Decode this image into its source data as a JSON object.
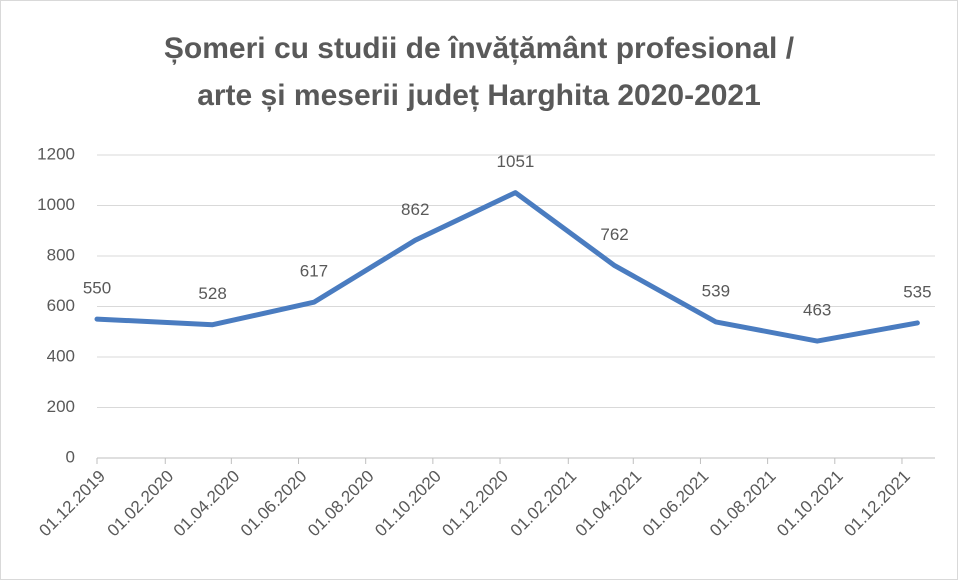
{
  "chart_data": {
    "type": "line",
    "title": [
      "Șomeri cu studii de învățământ profesional /",
      "arte și meserii județ Harghita 2020-2021"
    ],
    "x": [
      "01.12.2019",
      "15.03.2020",
      "15.06.2020",
      "15.09.2020",
      "15.12.2020",
      "15.03.2021",
      "15.06.2021",
      "15.09.2021",
      "15.12.2021"
    ],
    "series": [
      {
        "name": "Șomeri",
        "color": "#4a7cc0",
        "values": [
          550,
          528,
          617,
          862,
          1051,
          762,
          539,
          463,
          535
        ]
      }
    ],
    "xlim": [
      "01.12.2019",
      "31.12.2021"
    ],
    "xticks": [
      "01.12.2019",
      "01.02.2020",
      "01.04.2020",
      "01.06.2020",
      "01.08.2020",
      "01.10.2020",
      "01.12.2020",
      "01.02.2021",
      "01.04.2021",
      "01.06.2021",
      "01.08.2021",
      "01.10.2021",
      "01.12.2021"
    ],
    "ylim": [
      0,
      1200
    ],
    "yticks": [
      0,
      200,
      400,
      600,
      800,
      1000,
      1200
    ],
    "grid": true,
    "data_labels": true
  }
}
